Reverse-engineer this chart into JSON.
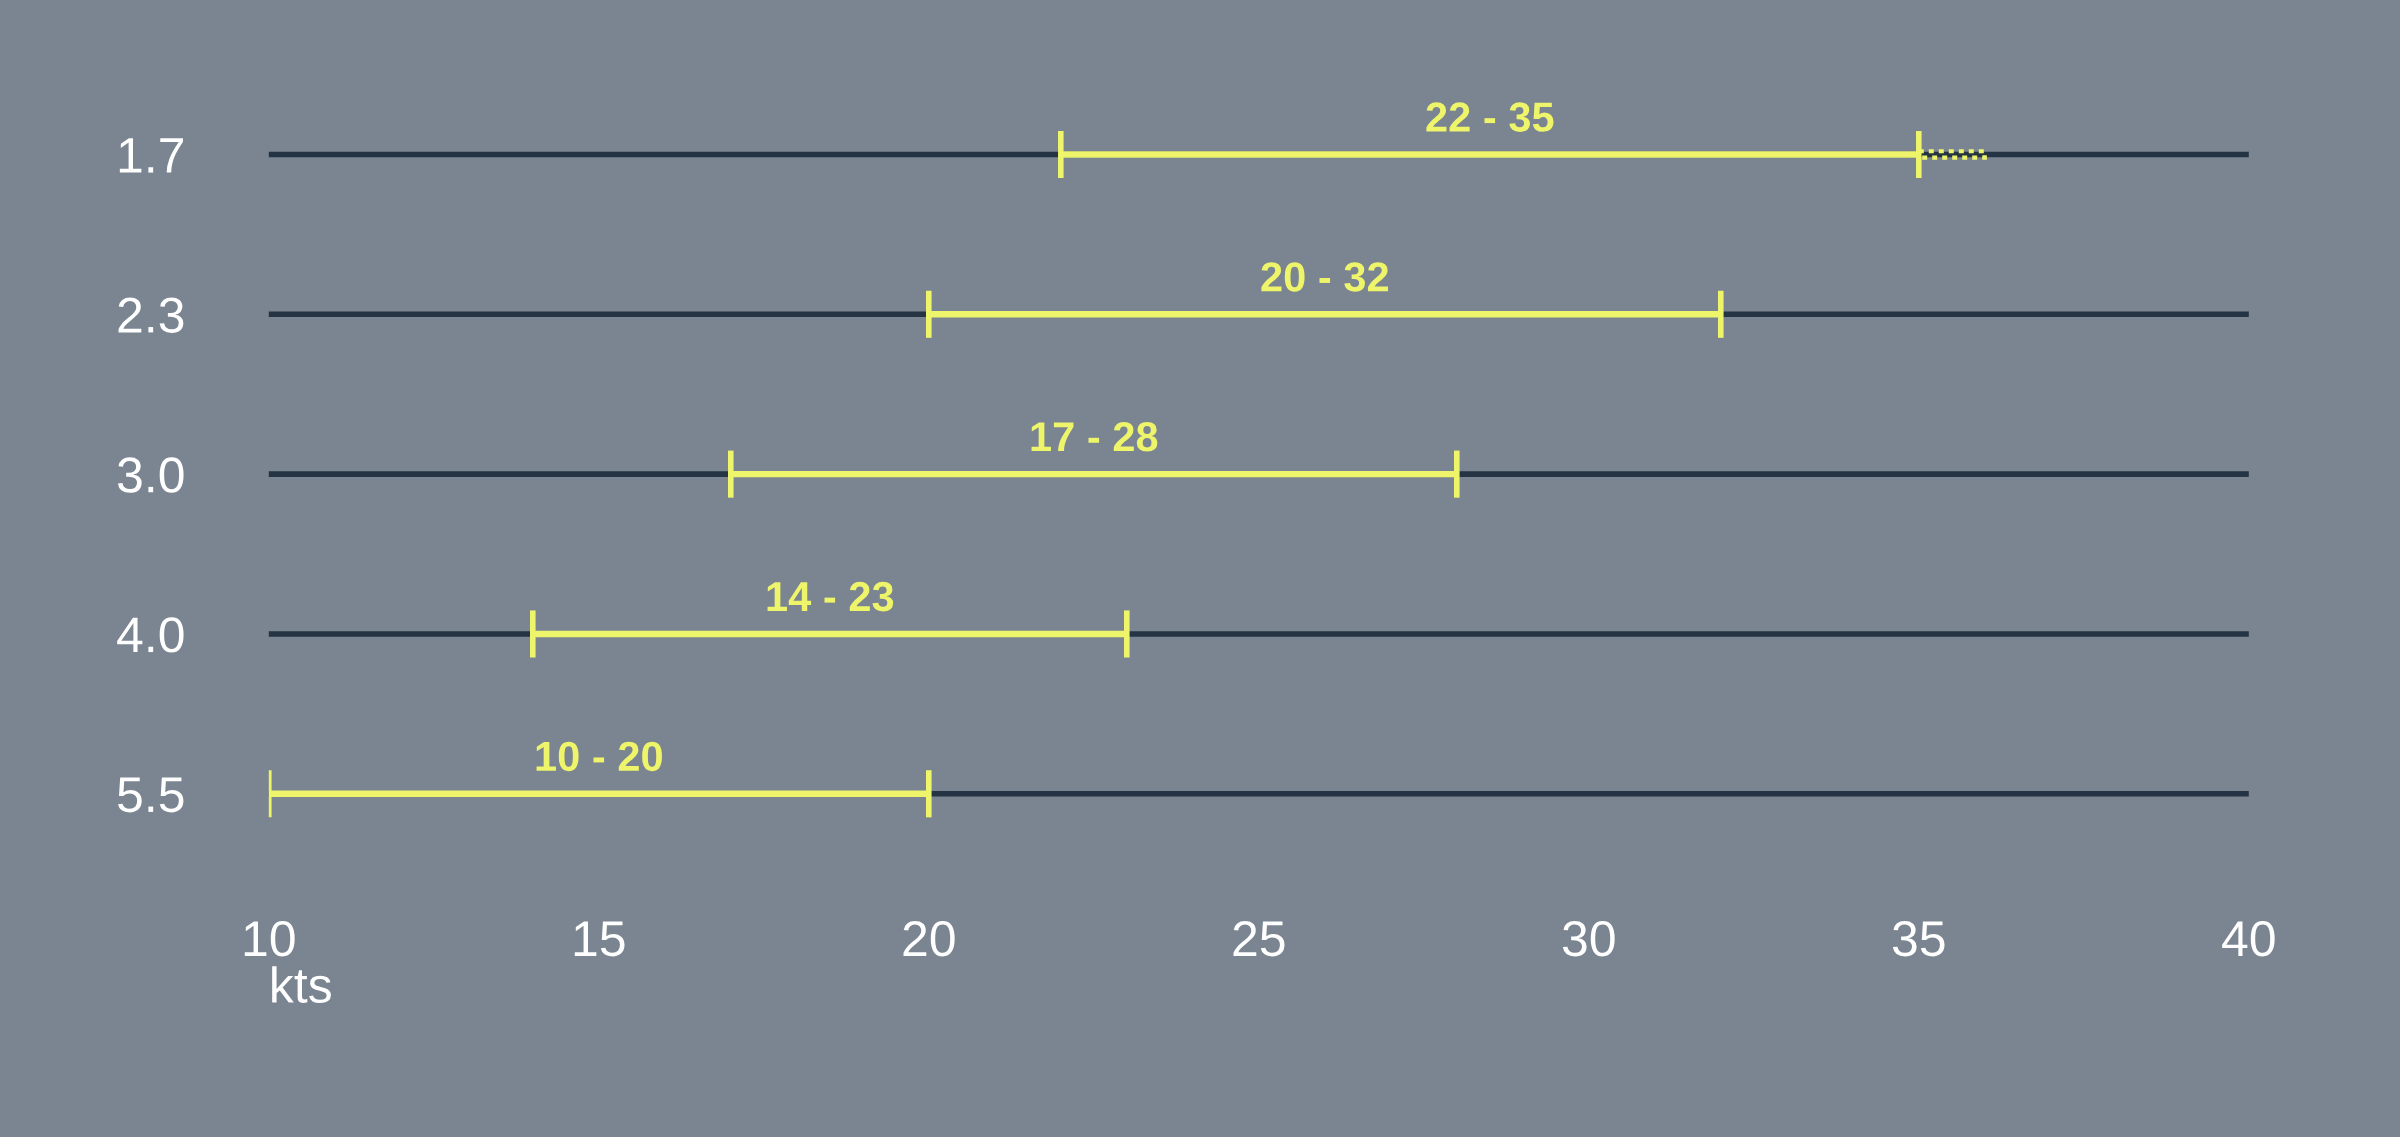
{
  "chart_data": {
    "type": "bar",
    "orientation": "horizontal",
    "categories": [
      "1.7",
      "2.3",
      "3.0",
      "4.0",
      "5.5"
    ],
    "series": [
      {
        "color": "#eef56a",
        "base": [
          22,
          20,
          17,
          14,
          10
        ],
        "values": [
          13,
          12,
          11,
          9,
          10
        ]
      },
      {
        "color": "#eef56a",
        "line_style": "dashed",
        "base": [
          35,
          null,
          null,
          null,
          null
        ],
        "values": [
          1,
          null,
          null,
          null,
          null
        ]
      }
    ],
    "annotations": [
      {
        "text": "22 - 35",
        "x": 28.5,
        "y": "1.7"
      },
      {
        "text": "20 - 32",
        "x": 26,
        "y": "2.3"
      },
      {
        "text": "17 - 28",
        "x": 22.5,
        "y": "3.0"
      },
      {
        "text": "14 - 23",
        "x": 18.5,
        "y": "4.0"
      },
      {
        "text": "10 - 20",
        "x": 15,
        "y": "5.5"
      }
    ],
    "xlim": [
      10,
      40
    ],
    "xticks": [
      10,
      15,
      20,
      25,
      30,
      35,
      40
    ],
    "xlabel": "kts",
    "grid": "y"
  }
}
